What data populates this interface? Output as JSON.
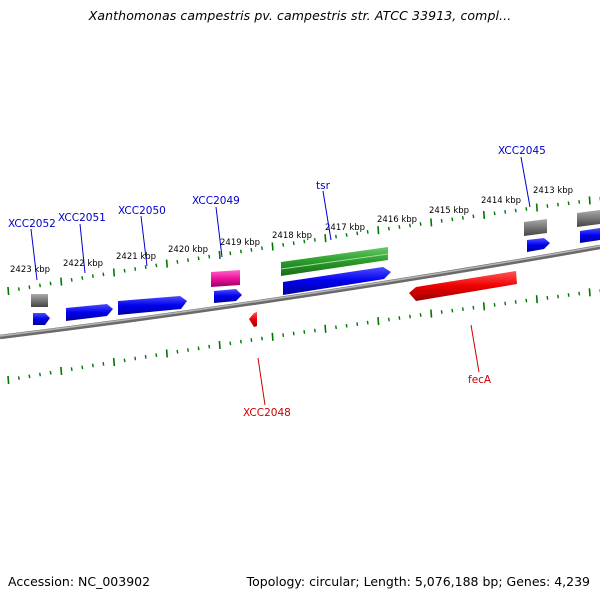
{
  "title": "Xanthomonas campestris pv. campestris str. ATCC 33913, compl...",
  "footer": {
    "accession": "Accession: NC_003902",
    "summary": "Topology: circular; Length: 5,076,188 bp; Genes: 4,239"
  },
  "kbp_labels": [
    "2423 kbp",
    "2422 kbp",
    "2421 kbp",
    "2420 kbp",
    "2419 kbp",
    "2418 kbp",
    "2417 kbp",
    "2416 kbp",
    "2415 kbp",
    "2414 kbp",
    "2413 kbp"
  ],
  "gene_labels": [
    {
      "text": "XCC2052",
      "color": "#0000cc"
    },
    {
      "text": "XCC2051",
      "color": "#0000cc"
    },
    {
      "text": "XCC2050",
      "color": "#0000cc"
    },
    {
      "text": "XCC2049",
      "color": "#0000cc"
    },
    {
      "text": "tsr",
      "color": "#0000cc"
    },
    {
      "text": "XCC2045",
      "color": "#0000cc"
    },
    {
      "text": "XCC2048",
      "color": "#cc0000"
    },
    {
      "text": "fecA",
      "color": "#cc0000"
    }
  ],
  "colors": {
    "cds_forward": "#0000ee",
    "cds_reverse": "#ee0000",
    "gene": "#777777",
    "rna": "#ee1199",
    "other": "#33aa33",
    "backbone": "#888888",
    "tick": "#007700"
  }
}
